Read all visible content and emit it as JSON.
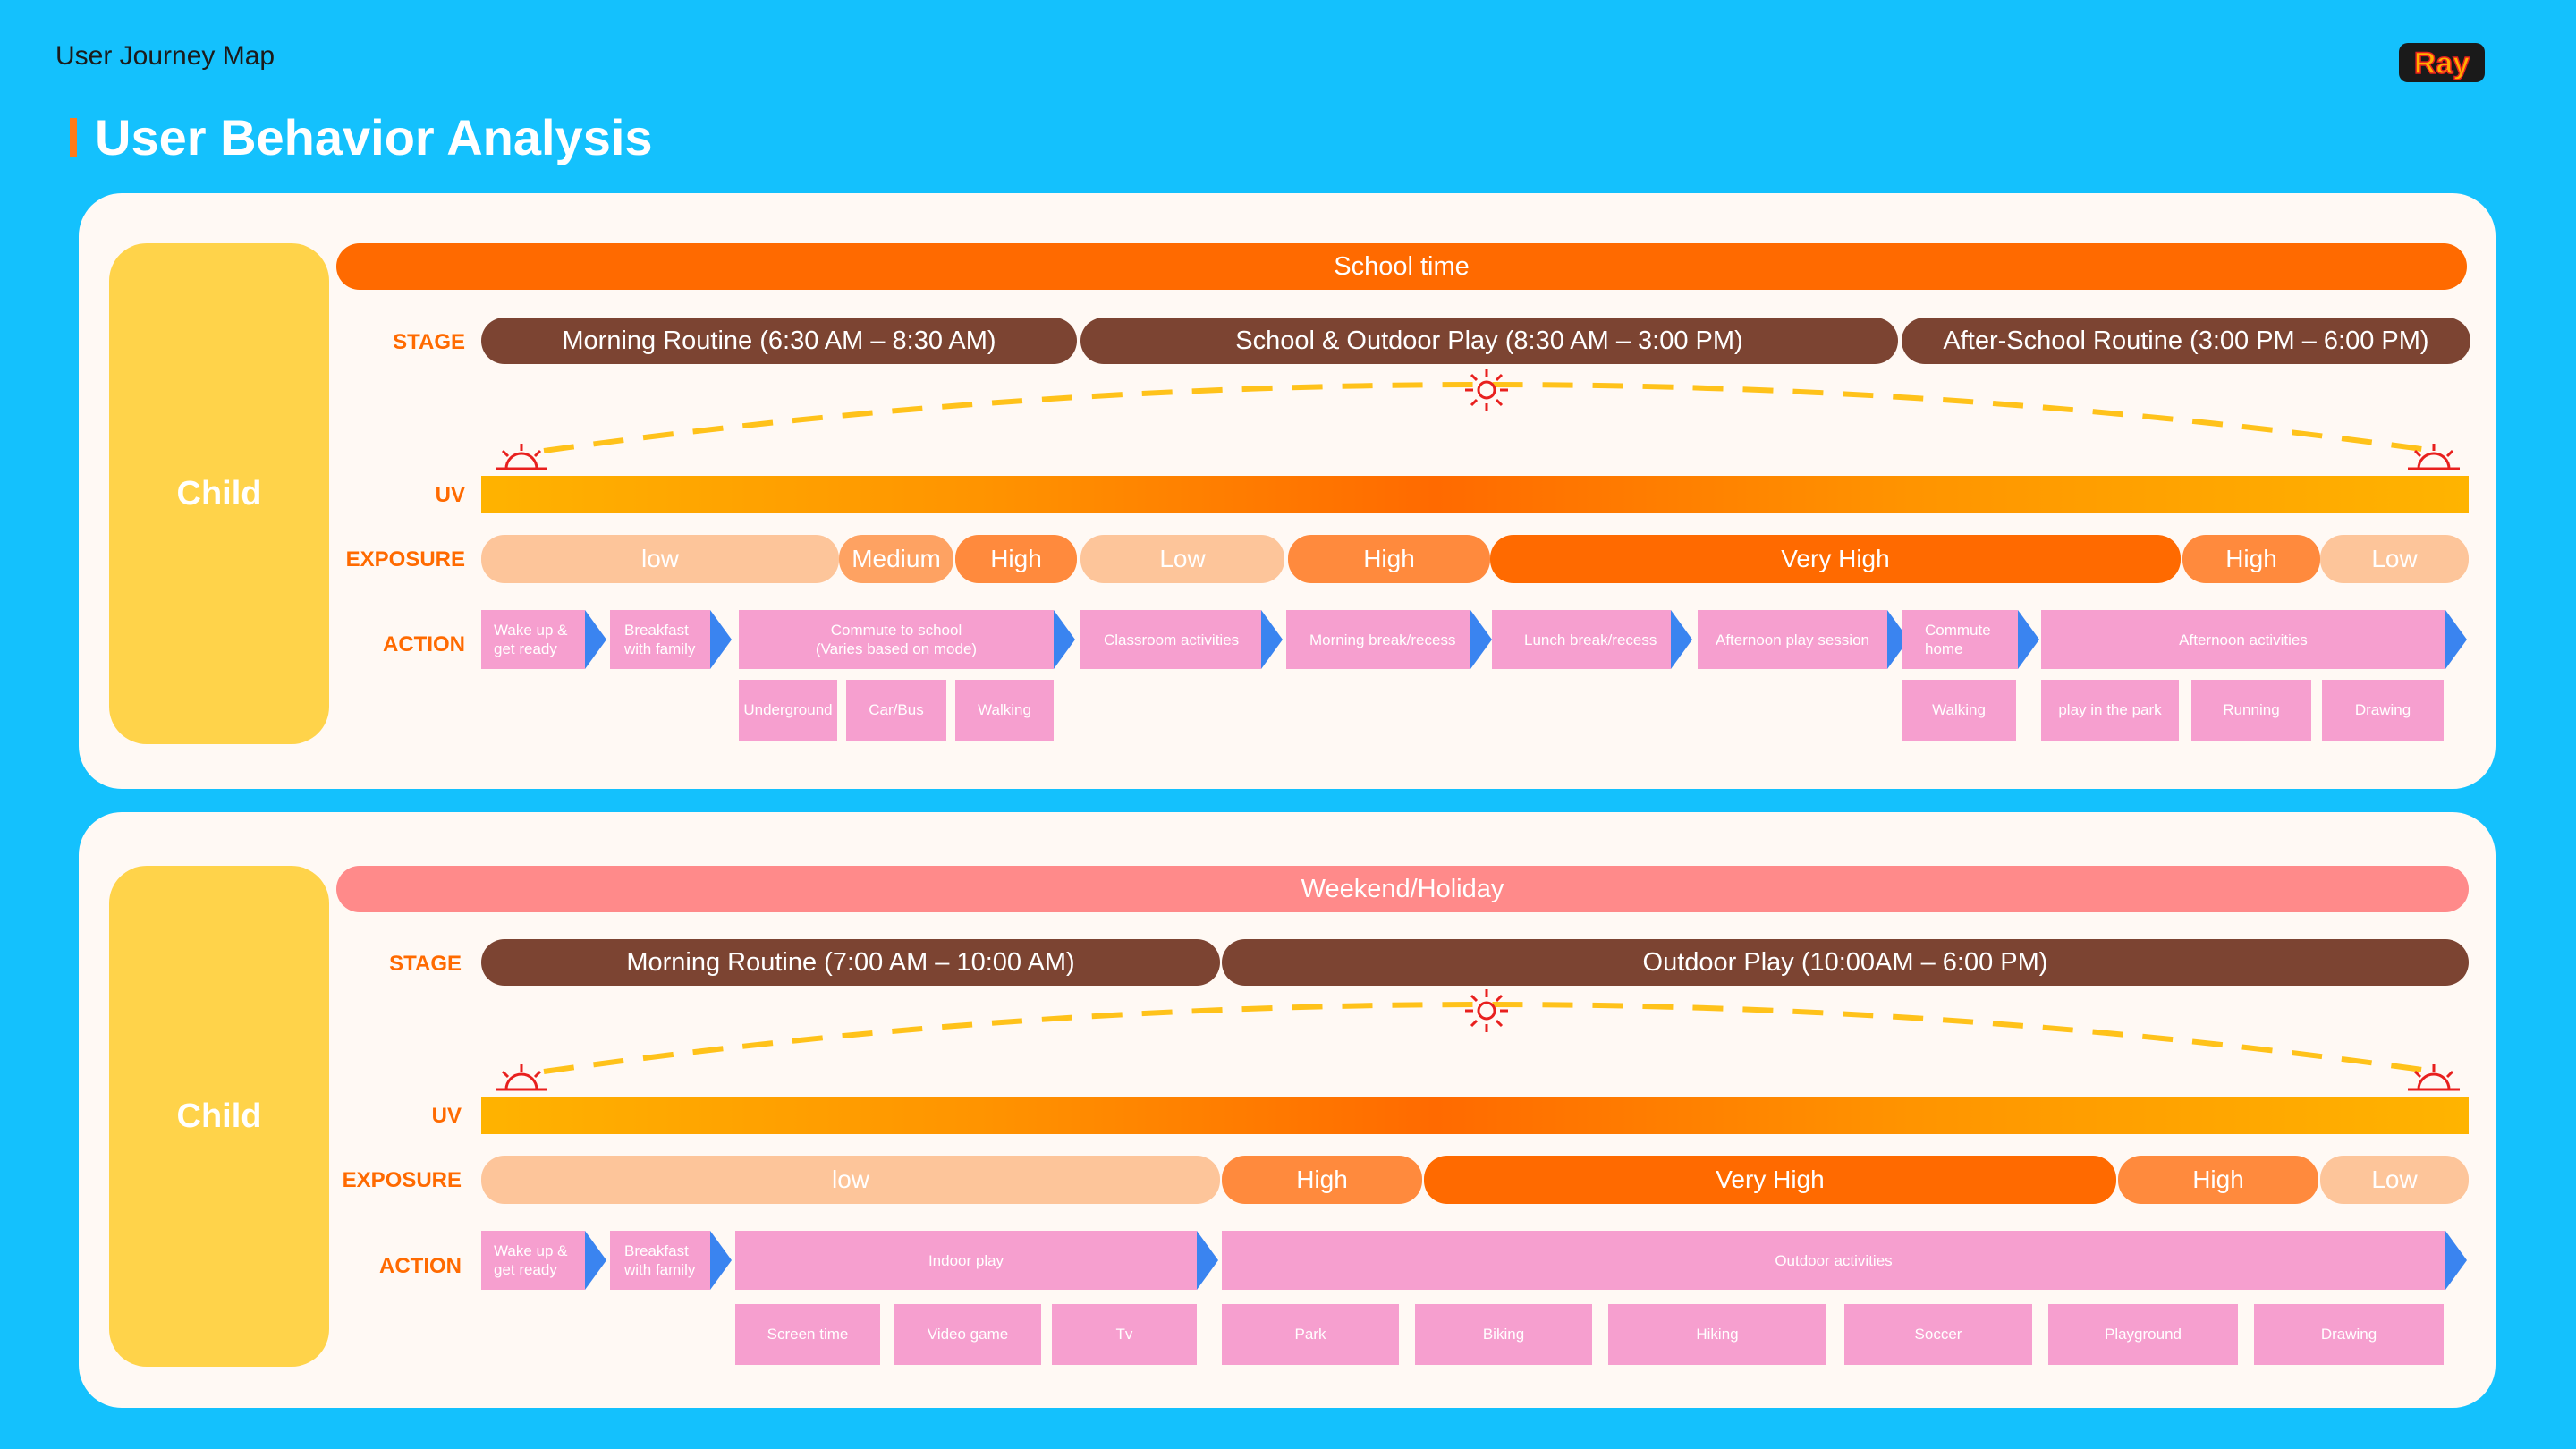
{
  "header": {
    "small_title": "User Journey Map",
    "title": "User Behavior Analysis",
    "logo_text": "Ray"
  },
  "labels": {
    "stage": "STAGE",
    "uv": "UV",
    "exposure": "EXPOSURE",
    "action": "ACTION"
  },
  "colors": {
    "background": "#14C1FD",
    "accent": "#FF6A00",
    "stage": "#7C4432",
    "action": "#F69FCF",
    "arrow": "#3A84F0",
    "child": "#FFD34A",
    "sun": "#E8201E",
    "dash": "#FFC21A"
  },
  "panel1": {
    "persona": "Child",
    "banner": "School time",
    "stages": [
      "Morning Routine (6:30 AM – 8:30 AM)",
      "School & Outdoor Play (8:30 AM – 3:00 PM)",
      "After-School Routine (3:00 PM – 6:00 PM)"
    ],
    "exposure": [
      "low",
      "Medium",
      "High",
      "Low",
      "High",
      "Very High",
      "High",
      "Low"
    ],
    "actions": [
      "Wake up & get ready",
      "Breakfast with family",
      "Commute to school",
      "(Varies based on mode)",
      "Classroom activities",
      "Morning break/recess",
      "Lunch break/recess",
      "Afternoon play session",
      "Commute home",
      "Afternoon activities"
    ],
    "subactions": [
      "Underground",
      "Car/Bus",
      "Walking",
      "Walking",
      "play in the park",
      "Running",
      "Drawing"
    ]
  },
  "panel2": {
    "persona": "Child",
    "banner": "Weekend/Holiday",
    "stages": [
      "Morning Routine (7:00 AM – 10:00 AM)",
      "Outdoor Play (10:00AM – 6:00 PM)"
    ],
    "exposure": [
      "low",
      "High",
      "Very High",
      "High",
      "Low"
    ],
    "actions": [
      "Wake up & get ready",
      "Breakfast with family",
      "Indoor play",
      "Outdoor activities"
    ],
    "subactions": [
      "Screen time",
      "Video game",
      "Tv",
      "Park",
      "Biking",
      "Hiking",
      "Soccer",
      "Playground",
      "Drawing"
    ]
  }
}
